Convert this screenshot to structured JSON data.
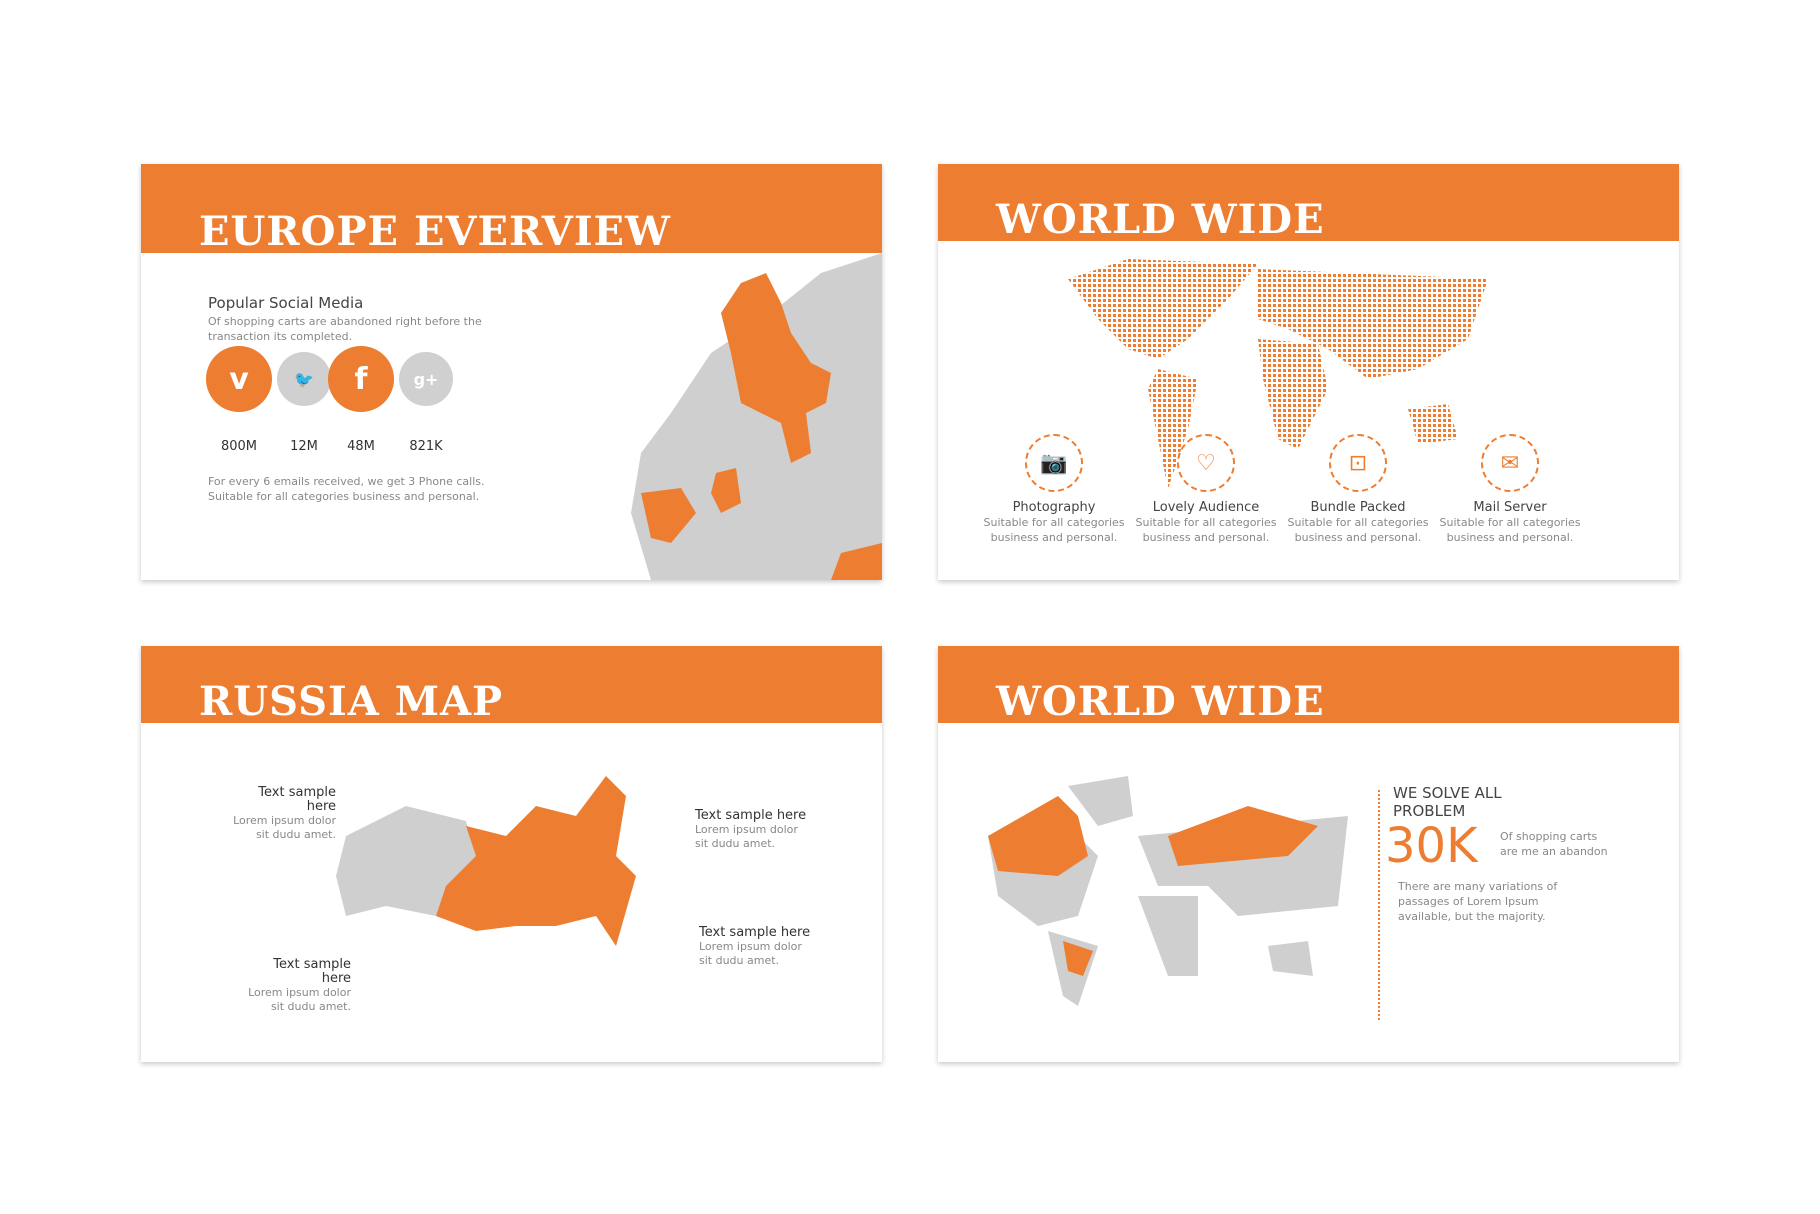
{
  "slide1": {
    "title": "EUROPE EVERVIEW",
    "heading": "Popular Social Media",
    "subtitle": "Of shopping carts are abandoned right before the transaction its completed.",
    "social": [
      {
        "icon": "vimeo-icon",
        "glyph": "v",
        "value": "800M",
        "active": true
      },
      {
        "icon": "twitter-icon",
        "glyph": "🐦",
        "value": "12M",
        "active": false
      },
      {
        "icon": "facebook-icon",
        "glyph": "f",
        "value": "48M",
        "active": true
      },
      {
        "icon": "google-plus-icon",
        "glyph": "g+",
        "value": "821K",
        "active": false
      }
    ],
    "footer_line1": "For every 6 emails received, we get 3 Phone calls.",
    "footer_line2": "Suitable for all categories business and personal."
  },
  "slide2": {
    "title": "WORLD WIDE",
    "features": [
      {
        "icon": "camera-icon",
        "glyph": "📷",
        "name": "Photography",
        "desc": "Suitable for all categories business and personal."
      },
      {
        "icon": "heart-icon",
        "glyph": "♡",
        "name": "Lovely Audience",
        "desc": "Suitable for all categories business and personal."
      },
      {
        "icon": "inbox-icon",
        "glyph": "⊡",
        "name": "Bundle Packed",
        "desc": "Suitable for all categories business and personal."
      },
      {
        "icon": "mail-icon",
        "glyph": "✉",
        "name": "Mail Server",
        "desc": "Suitable for all categories business and personal."
      }
    ]
  },
  "slide3": {
    "title": "RUSSIA MAP",
    "labels": [
      {
        "title": "Text sample here",
        "line1": "Lorem ipsum dolor",
        "line2": "sit dudu amet."
      },
      {
        "title": "Text sample here",
        "line1": "Lorem ipsum dolor",
        "line2": "sit dudu amet."
      },
      {
        "title": "Text sample here",
        "line1": "Lorem ipsum dolor",
        "line2": "sit dudu amet."
      },
      {
        "title": "Text sample here",
        "line1": "Lorem ipsum dolor",
        "line2": "sit dudu amet."
      }
    ]
  },
  "slide4": {
    "title": "WORLD WIDE",
    "heading": "WE SOLVE ALL PROBLEM",
    "stat": "30K",
    "stat_note": "Of shopping carts are me an abandon",
    "body": "There are many variations of passages of Lorem Ipsum available, but the majority."
  },
  "colors": {
    "accent": "#ed7d31",
    "map_gray": "#cfcfcf"
  }
}
